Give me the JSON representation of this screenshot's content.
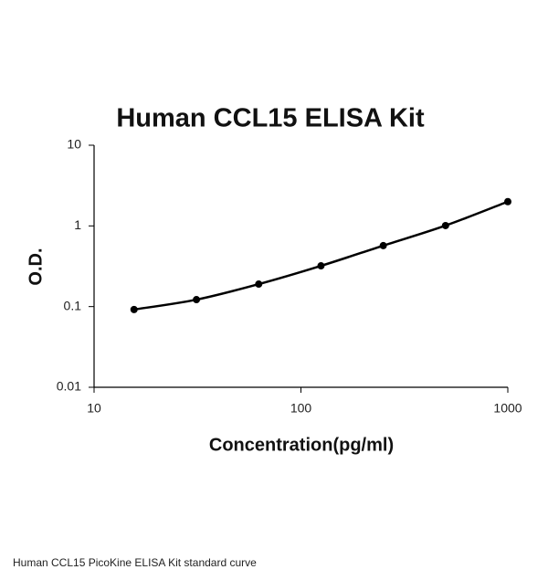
{
  "chart_data": {
    "type": "line",
    "title": "Human CCL15 ELISA Kit",
    "xlabel": "Concentration(pg/ml)",
    "ylabel": "O.D.",
    "x": [
      15.6,
      31.25,
      62.5,
      125,
      250,
      500,
      1000
    ],
    "series": [
      {
        "color": "#000000",
        "values": [
          0.092,
          0.122,
          0.19,
          0.32,
          0.57,
          1.01,
          2.0
        ]
      }
    ],
    "xlim": [
      10,
      1000
    ],
    "xticks": [
      10,
      100,
      1000
    ],
    "ylim": [
      0.01,
      10
    ],
    "yticks": [
      0.01,
      0.1,
      1,
      10
    ],
    "xscale": "log",
    "yscale": "log",
    "markers": true
  },
  "caption": "Human CCL15 PicoKine ELISA Kit standard curve"
}
